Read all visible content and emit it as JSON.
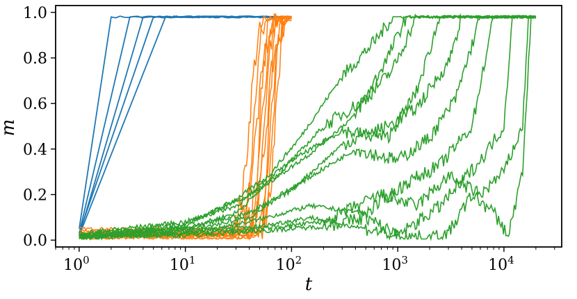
{
  "chart_data": {
    "type": "line",
    "xlabel": "t",
    "ylabel": "m",
    "xscale": "log",
    "xlim": [
      0.6,
      35000
    ],
    "ylim": [
      -0.03,
      1.03
    ],
    "grid": false,
    "xticks": [
      {
        "value": 1,
        "base": "10",
        "exp": "0"
      },
      {
        "value": 10,
        "base": "10",
        "exp": "1"
      },
      {
        "value": 100,
        "base": "10",
        "exp": "2"
      },
      {
        "value": 1000,
        "base": "10",
        "exp": "3"
      },
      {
        "value": 10000,
        "base": "10",
        "exp": "4"
      }
    ],
    "yticks": [
      {
        "value": 0.0,
        "label": "0.0"
      },
      {
        "value": 0.2,
        "label": "0.2"
      },
      {
        "value": 0.4,
        "label": "0.4"
      },
      {
        "value": 0.6,
        "label": "0.6"
      },
      {
        "value": 0.8,
        "label": "0.8"
      },
      {
        "value": 1.0,
        "label": "1.0"
      }
    ],
    "groups": [
      {
        "color": "#1f77b4",
        "plateau": 0.98,
        "t_end": 100,
        "runs": [
          {
            "m0": 0.05,
            "t_jump": 2.0
          },
          {
            "m0": 0.03,
            "t_jump": 3.0
          },
          {
            "m0": 0.02,
            "t_jump": 4.0
          },
          {
            "m0": 0.03,
            "t_jump": 5.0
          },
          {
            "m0": 0.02,
            "t_jump": 6.5
          }
        ]
      },
      {
        "color": "#ff7f0e",
        "plateau": 0.98,
        "t_end": 100,
        "runs": [
          {
            "m0": 0.05,
            "t_jump": 40,
            "width": 1.15
          },
          {
            "m0": 0.02,
            "t_jump": 44,
            "width": 1.12
          },
          {
            "m0": 0.03,
            "t_jump": 47,
            "width": 1.2
          },
          {
            "m0": 0.01,
            "t_jump": 50,
            "width": 1.1
          },
          {
            "m0": 0.04,
            "t_jump": 52,
            "width": 1.15
          },
          {
            "m0": 0.02,
            "t_jump": 55,
            "width": 1.12
          },
          {
            "m0": 0.03,
            "t_jump": 58,
            "width": 1.18
          },
          {
            "m0": 0.01,
            "t_jump": 61,
            "width": 1.1
          },
          {
            "m0": 0.02,
            "t_jump": 64,
            "width": 1.12
          },
          {
            "m0": 0.03,
            "t_jump": 67,
            "width": 1.1
          },
          {
            "m0": 0.02,
            "t_jump": 70,
            "width": 1.12
          }
        ]
      },
      {
        "color": "#2ca02c",
        "plateau": 0.98,
        "t_end": 20000,
        "runs": [
          {
            "pts": [
              [
                1,
                0.02
              ],
              [
                10,
                0.06
              ],
              [
                30,
                0.18
              ],
              [
                60,
                0.28
              ],
              [
                120,
                0.45
              ],
              [
                300,
                0.72
              ],
              [
                600,
                0.87
              ],
              [
                900,
                0.98
              ]
            ]
          },
          {
            "pts": [
              [
                1,
                0.01
              ],
              [
                10,
                0.05
              ],
              [
                30,
                0.12
              ],
              [
                60,
                0.25
              ],
              [
                150,
                0.38
              ],
              [
                400,
                0.55
              ],
              [
                800,
                0.8
              ],
              [
                1200,
                0.98
              ]
            ]
          },
          {
            "pts": [
              [
                1,
                0.03
              ],
              [
                10,
                0.08
              ],
              [
                30,
                0.15
              ],
              [
                80,
                0.3
              ],
              [
                200,
                0.5
              ],
              [
                500,
                0.62
              ],
              [
                900,
                0.75
              ],
              [
                1500,
                0.98
              ]
            ]
          },
          {
            "pts": [
              [
                1,
                0.02
              ],
              [
                10,
                0.07
              ],
              [
                40,
                0.2
              ],
              [
                100,
                0.35
              ],
              [
                300,
                0.48
              ],
              [
                800,
                0.45
              ],
              [
                1500,
                0.65
              ],
              [
                2500,
                0.98
              ]
            ]
          },
          {
            "pts": [
              [
                1,
                0.01
              ],
              [
                10,
                0.04
              ],
              [
                40,
                0.1
              ],
              [
                100,
                0.22
              ],
              [
                300,
                0.42
              ],
              [
                800,
                0.5
              ],
              [
                1500,
                0.58
              ],
              [
                3000,
                0.78
              ],
              [
                4000,
                0.98
              ]
            ]
          },
          {
            "pts": [
              [
                1,
                0.02
              ],
              [
                10,
                0.05
              ],
              [
                40,
                0.12
              ],
              [
                120,
                0.25
              ],
              [
                400,
                0.4
              ],
              [
                1000,
                0.35
              ],
              [
                2000,
                0.45
              ],
              [
                3500,
                0.62
              ],
              [
                6000,
                0.98
              ]
            ]
          },
          {
            "pts": [
              [
                1,
                0.01
              ],
              [
                10,
                0.03
              ],
              [
                40,
                0.08
              ],
              [
                150,
                0.15
              ],
              [
                500,
                0.12
              ],
              [
                1200,
                0.25
              ],
              [
                2500,
                0.33
              ],
              [
                5000,
                0.5
              ],
              [
                8000,
                0.98
              ]
            ]
          },
          {
            "pts": [
              [
                1,
                0.02
              ],
              [
                10,
                0.04
              ],
              [
                50,
                0.06
              ],
              [
                150,
                0.1
              ],
              [
                500,
                0.05
              ],
              [
                1000,
                0.02
              ],
              [
                2500,
                0.15
              ],
              [
                6000,
                0.35
              ],
              [
                10000,
                0.5
              ],
              [
                12000,
                0.98
              ]
            ]
          },
          {
            "pts": [
              [
                1,
                0.01
              ],
              [
                10,
                0.03
              ],
              [
                50,
                0.05
              ],
              [
                200,
                0.08
              ],
              [
                700,
                0.2
              ],
              [
                1500,
                0.15
              ],
              [
                3000,
                0.28
              ],
              [
                6000,
                0.2
              ],
              [
                10000,
                0.3
              ],
              [
                15000,
                0.5
              ],
              [
                17000,
                0.98
              ]
            ]
          },
          {
            "pts": [
              [
                1,
                0.02
              ],
              [
                10,
                0.02
              ],
              [
                50,
                0.04
              ],
              [
                200,
                0.06
              ],
              [
                500,
                0.1
              ],
              [
                1000,
                0.02
              ],
              [
                2000,
                0.01
              ],
              [
                3000,
                0.03
              ],
              [
                5000,
                0.2
              ],
              [
                8000,
                0.12
              ],
              [
                11000,
                0.02
              ],
              [
                15000,
                0.3
              ],
              [
                18000,
                0.98
              ]
            ]
          }
        ]
      }
    ]
  }
}
